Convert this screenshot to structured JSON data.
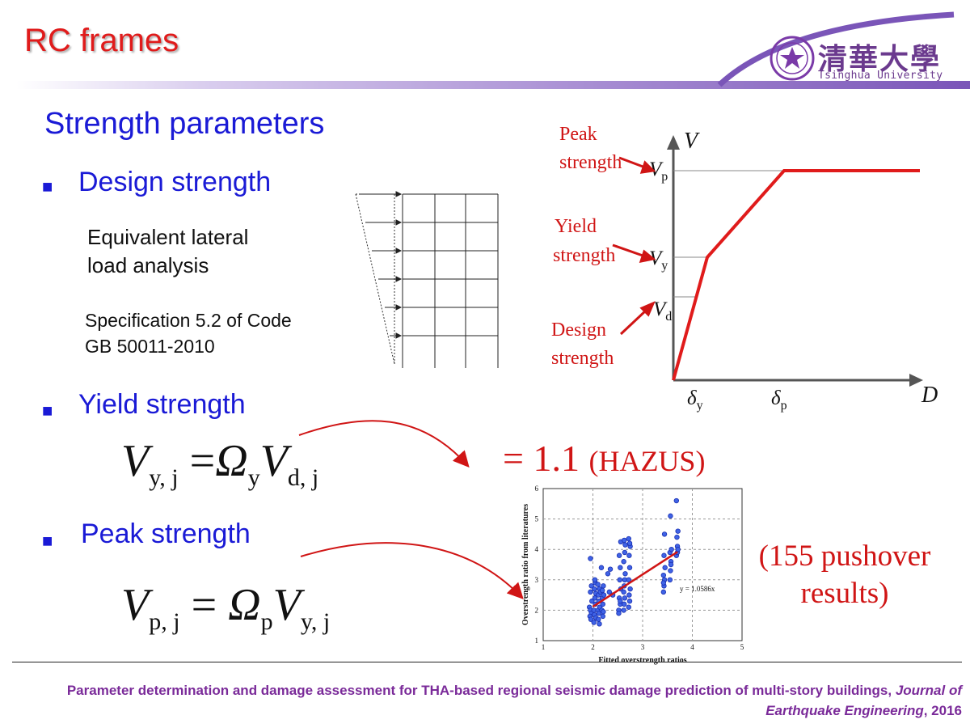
{
  "header": {
    "title": "RC frames",
    "logo_cn": "清華大學",
    "logo_en": "Tsinghua University"
  },
  "main": {
    "heading": "Strength parameters",
    "design_strength": {
      "label": "Design strength",
      "method_line1": "Equivalent lateral",
      "method_line2": "load analysis",
      "spec_line1": "Specification 5.2 of Code",
      "spec_line2": "GB 50011-2010"
    },
    "yield_strength": {
      "label": "Yield strength",
      "eq_lhs": "V",
      "eq_lhs_sub": "y, j",
      "eq_eq": "=",
      "eq_omega": "Ω",
      "eq_omega_sub": "y",
      "eq_rhs": "V",
      "eq_rhs_sub": "d, j",
      "value": "= 1.1",
      "source": "(HAZUS)"
    },
    "peak_strength": {
      "label": "Peak strength",
      "eq_lhs": "V",
      "eq_lhs_sub": "p, j",
      "eq_eq": "=",
      "eq_omega": "Ω",
      "eq_omega_sub": "p",
      "eq_rhs": "V",
      "eq_rhs_sub": "y, j",
      "note_line1": "(155 pushover",
      "note_line2": "results)"
    }
  },
  "backbone": {
    "y_axis": "V",
    "x_axis": "D",
    "vp": "V",
    "vp_sub": "p",
    "vy": "V",
    "vy_sub": "y",
    "vd": "V",
    "vd_sub": "d",
    "dy": "δ",
    "dy_sub": "y",
    "dp": "δ",
    "dp_sub": "p",
    "peak_label_1": "Peak",
    "peak_label_2": "strength",
    "yield_label_1": "Yield",
    "yield_label_2": "strength",
    "design_label_1": "Design",
    "design_label_2": "strength"
  },
  "scatter": {
    "ylabel": "Overstrength ratio from literatures",
    "xlabel": "Fitted overstrength ratios",
    "fit_label": "y = 1.0586x",
    "x_ticks": [
      "1",
      "2",
      "3",
      "4",
      "5"
    ],
    "y_ticks": [
      "1",
      "2",
      "3",
      "4",
      "5",
      "6"
    ]
  },
  "chart_data": {
    "type": "scatter",
    "xlabel": "Fitted overstrength ratios",
    "ylabel": "Overstrength ratio from literatures",
    "xlim": [
      1,
      5
    ],
    "ylim": [
      1,
      6
    ],
    "grid": true,
    "series": [
      {
        "values": [
          [
            1.95,
            3.7
          ],
          [
            1.93,
            2.1
          ],
          [
            1.95,
            2.0
          ],
          [
            1.97,
            1.9
          ],
          [
            1.94,
            1.8
          ],
          [
            1.96,
            1.7
          ],
          [
            1.98,
            2.3
          ],
          [
            1.95,
            2.6
          ],
          [
            1.97,
            2.8
          ],
          [
            2.02,
            2.0
          ],
          [
            2.03,
            1.85
          ],
          [
            2.05,
            2.2
          ],
          [
            2.04,
            2.4
          ],
          [
            2.06,
            2.55
          ],
          [
            2.03,
            2.7
          ],
          [
            2.05,
            2.9
          ],
          [
            2.04,
            3.0
          ],
          [
            2.02,
            1.6
          ],
          [
            2.06,
            1.75
          ],
          [
            2.1,
            2.0
          ],
          [
            2.12,
            2.3
          ],
          [
            2.11,
            2.5
          ],
          [
            2.13,
            2.7
          ],
          [
            2.1,
            2.85
          ],
          [
            2.12,
            1.9
          ],
          [
            2.14,
            2.1
          ],
          [
            2.11,
            1.7
          ],
          [
            2.13,
            1.55
          ],
          [
            2.15,
            2.6
          ],
          [
            2.18,
            2.0
          ],
          [
            2.2,
            2.2
          ],
          [
            2.19,
            2.4
          ],
          [
            2.21,
            2.8
          ],
          [
            2.17,
            3.4
          ],
          [
            2.2,
            1.8
          ],
          [
            2.22,
            2.5
          ],
          [
            2.19,
            2.65
          ],
          [
            2.21,
            1.95
          ],
          [
            2.3,
            3.2
          ],
          [
            2.35,
            3.35
          ],
          [
            2.33,
            2.6
          ],
          [
            2.4,
            2.5
          ],
          [
            2.52,
            2.0
          ],
          [
            2.55,
            2.2
          ],
          [
            2.53,
            2.4
          ],
          [
            2.56,
            2.7
          ],
          [
            2.54,
            3.0
          ],
          [
            2.55,
            3.4
          ],
          [
            2.53,
            3.8
          ],
          [
            2.56,
            4.25
          ],
          [
            2.52,
            1.9
          ],
          [
            2.55,
            2.3
          ],
          [
            2.62,
            2.0
          ],
          [
            2.63,
            2.2
          ],
          [
            2.64,
            2.4
          ],
          [
            2.62,
            2.6
          ],
          [
            2.63,
            2.8
          ],
          [
            2.64,
            3.0
          ],
          [
            2.65,
            3.2
          ],
          [
            2.62,
            3.6
          ],
          [
            2.64,
            3.9
          ],
          [
            2.63,
            4.3
          ],
          [
            2.65,
            4.15
          ],
          [
            2.72,
            2.1
          ],
          [
            2.74,
            2.3
          ],
          [
            2.73,
            2.5
          ],
          [
            2.75,
            2.7
          ],
          [
            2.72,
            3.0
          ],
          [
            2.74,
            3.4
          ],
          [
            2.73,
            3.8
          ],
          [
            2.75,
            4.1
          ],
          [
            2.72,
            4.35
          ],
          [
            2.74,
            4.2
          ],
          [
            3.42,
            2.6
          ],
          [
            3.43,
            2.8
          ],
          [
            3.44,
            3.0
          ],
          [
            3.42,
            3.15
          ],
          [
            3.45,
            3.4
          ],
          [
            3.43,
            3.8
          ],
          [
            3.44,
            4.5
          ],
          [
            3.42,
            2.9
          ],
          [
            3.55,
            3.0
          ],
          [
            3.56,
            3.3
          ],
          [
            3.57,
            3.6
          ],
          [
            3.55,
            3.9
          ],
          [
            3.58,
            4.0
          ],
          [
            3.56,
            5.1
          ],
          [
            3.57,
            3.5
          ],
          [
            3.68,
            3.8
          ],
          [
            3.7,
            4.1
          ],
          [
            3.69,
            4.4
          ],
          [
            3.71,
            4.6
          ],
          [
            3.68,
            5.6
          ],
          [
            3.7,
            3.9
          ],
          [
            3.71,
            4.0
          ]
        ]
      }
    ],
    "fit": {
      "label": "y = 1.0586x",
      "x_range": [
        2.0,
        3.7
      ],
      "slope": 1.0586
    }
  }
}
